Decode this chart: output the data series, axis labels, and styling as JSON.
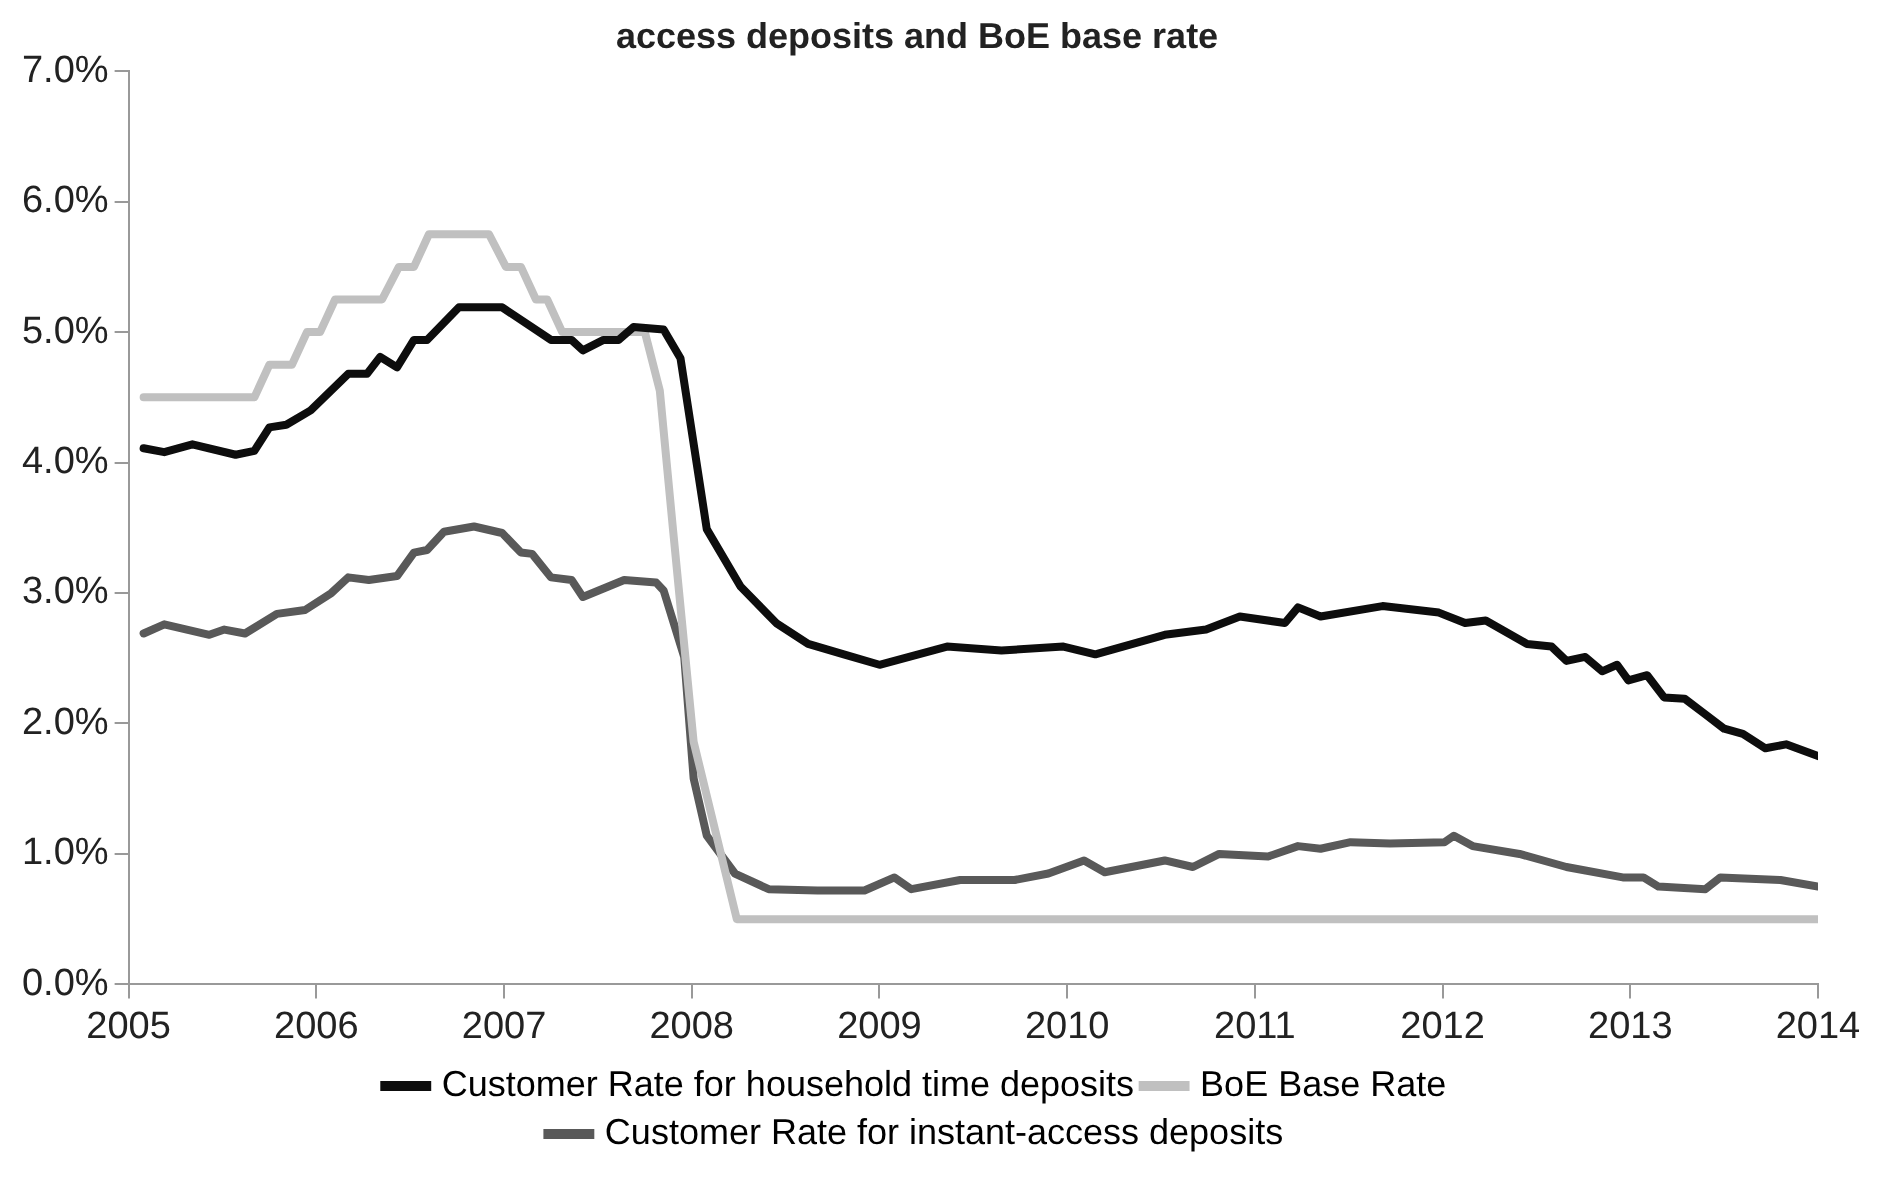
{
  "chart_data": {
    "type": "line",
    "title": "access deposits and BoE base rate",
    "xlim": [
      2005,
      2014
    ],
    "xticks": [
      2005,
      2006,
      2007,
      2008,
      2009,
      2010,
      2011,
      2012,
      2013,
      2014
    ],
    "ylim": [
      0,
      7
    ],
    "yticks": [
      {
        "value": 0,
        "label": "0.0%"
      },
      {
        "value": 1,
        "label": "1.0%"
      },
      {
        "value": 2,
        "label": "2.0%"
      },
      {
        "value": 3,
        "label": "3.0%"
      },
      {
        "value": 4,
        "label": "4.0%"
      },
      {
        "value": 5,
        "label": "5.0%"
      },
      {
        "value": 6,
        "label": "6.0%"
      },
      {
        "value": 7,
        "label": "7.0%"
      }
    ],
    "grid": false,
    "legend": "bottom",
    "marker": "none",
    "line_style": "solid",
    "series": [
      {
        "name": "Customer Rate for household time deposits",
        "color": "#0d0d0d",
        "x": [
          2005.08,
          2005.19,
          2005.34,
          2005.57,
          2005.67,
          2005.75,
          2005.84,
          2005.97,
          2006.17,
          2006.27,
          2006.34,
          2006.43,
          2006.52,
          2006.59,
          2006.76,
          2006.99,
          2007.25,
          2007.36,
          2007.42,
          2007.53,
          2007.61,
          2007.69,
          2007.85,
          2007.94,
          2008.08,
          2008.26,
          2008.45,
          2008.62,
          2008.81,
          2009.0,
          2009.36,
          2009.65,
          2009.98,
          2010.15,
          2010.52,
          2010.74,
          2010.92,
          2011.16,
          2011.23,
          2011.35,
          2011.68,
          2011.98,
          2012.12,
          2012.23,
          2012.45,
          2012.58,
          2012.66,
          2012.76,
          2012.85,
          2012.93,
          2012.99,
          2013.09,
          2013.18,
          2013.29,
          2013.4,
          2013.5,
          2013.6,
          2013.72,
          2013.83,
          2014.0
        ],
        "values": [
          4.11,
          4.08,
          4.14,
          4.06,
          4.09,
          4.27,
          4.29,
          4.4,
          4.68,
          4.68,
          4.81,
          4.73,
          4.94,
          4.94,
          5.19,
          5.19,
          4.94,
          4.94,
          4.86,
          4.94,
          4.94,
          5.04,
          5.02,
          4.8,
          3.49,
          3.05,
          2.77,
          2.61,
          2.53,
          2.45,
          2.59,
          2.56,
          2.59,
          2.53,
          2.68,
          2.72,
          2.82,
          2.77,
          2.89,
          2.82,
          2.9,
          2.85,
          2.77,
          2.79,
          2.61,
          2.59,
          2.48,
          2.51,
          2.4,
          2.45,
          2.33,
          2.37,
          2.2,
          2.19,
          2.07,
          1.96,
          1.92,
          1.81,
          1.84,
          1.75
        ]
      },
      {
        "name": "BoE Base Rate",
        "color": "#c0c0c0",
        "x": [
          2005.08,
          2005.67,
          2005.75,
          2005.87,
          2005.95,
          2006.02,
          2006.1,
          2006.35,
          2006.44,
          2006.52,
          2006.6,
          2006.92,
          2007.01,
          2007.09,
          2007.17,
          2007.23,
          2007.31,
          2007.75,
          2007.83,
          2007.9,
          2008.01,
          2008.24,
          2014.0
        ],
        "values": [
          4.5,
          4.5,
          4.75,
          4.75,
          5.0,
          5.0,
          5.25,
          5.25,
          5.5,
          5.5,
          5.75,
          5.75,
          5.5,
          5.5,
          5.25,
          5.25,
          5.0,
          5.0,
          4.55,
          3.49,
          1.86,
          0.5,
          0.5
        ]
      },
      {
        "name": "Customer Rate for instant-access deposits",
        "color": "#595959",
        "x": [
          2005.08,
          2005.19,
          2005.43,
          2005.51,
          2005.62,
          2005.79,
          2005.94,
          2006.08,
          2006.17,
          2006.28,
          2006.43,
          2006.52,
          2006.59,
          2006.68,
          2006.84,
          2006.99,
          2007.09,
          2007.15,
          2007.25,
          2007.36,
          2007.42,
          2007.64,
          2007.81,
          2007.85,
          2007.96,
          2008.01,
          2008.08,
          2008.23,
          2008.41,
          2008.67,
          2008.92,
          2009.08,
          2009.17,
          2009.43,
          2009.72,
          2009.9,
          2010.09,
          2010.2,
          2010.52,
          2010.67,
          2010.81,
          2011.07,
          2011.23,
          2011.35,
          2011.51,
          2011.72,
          2012.01,
          2012.06,
          2012.16,
          2012.41,
          2012.66,
          2012.96,
          2013.07,
          2013.15,
          2013.4,
          2013.48,
          2013.8,
          2014.0
        ],
        "values": [
          2.69,
          2.76,
          2.68,
          2.72,
          2.69,
          2.84,
          2.87,
          3.0,
          3.12,
          3.1,
          3.13,
          3.31,
          3.33,
          3.47,
          3.51,
          3.46,
          3.31,
          3.3,
          3.12,
          3.1,
          2.97,
          3.1,
          3.08,
          3.02,
          2.51,
          1.58,
          1.14,
          0.85,
          0.73,
          0.72,
          0.72,
          0.82,
          0.73,
          0.8,
          0.8,
          0.85,
          0.95,
          0.86,
          0.95,
          0.9,
          1.0,
          0.98,
          1.06,
          1.04,
          1.09,
          1.08,
          1.09,
          1.14,
          1.06,
          1.0,
          0.9,
          0.82,
          0.82,
          0.75,
          0.73,
          0.82,
          0.8,
          0.75
        ]
      }
    ]
  }
}
